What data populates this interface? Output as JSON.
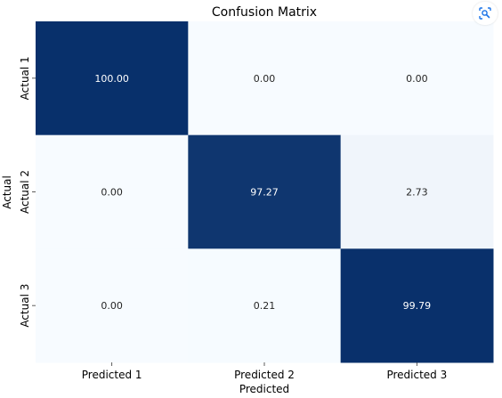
{
  "chart_data": {
    "type": "heatmap",
    "title": "Confusion Matrix",
    "xlabel": "Predicted",
    "ylabel": "Actual",
    "x_categories": [
      "Predicted 1",
      "Predicted 2",
      "Predicted 3"
    ],
    "y_categories": [
      "Actual 1",
      "Actual 2",
      "Actual 3"
    ],
    "values": [
      [
        100.0,
        0.0,
        0.0
      ],
      [
        0.0,
        97.27,
        2.73
      ],
      [
        0.0,
        0.21,
        99.79
      ]
    ],
    "value_format_decimals": 2,
    "vmin": 0,
    "vmax": 100,
    "colormap": "Blues",
    "low_color": "#f7fbff",
    "high_color": "#08306b",
    "colorbar": false
  },
  "ui": {
    "lens_icon": "visual-search-icon"
  }
}
